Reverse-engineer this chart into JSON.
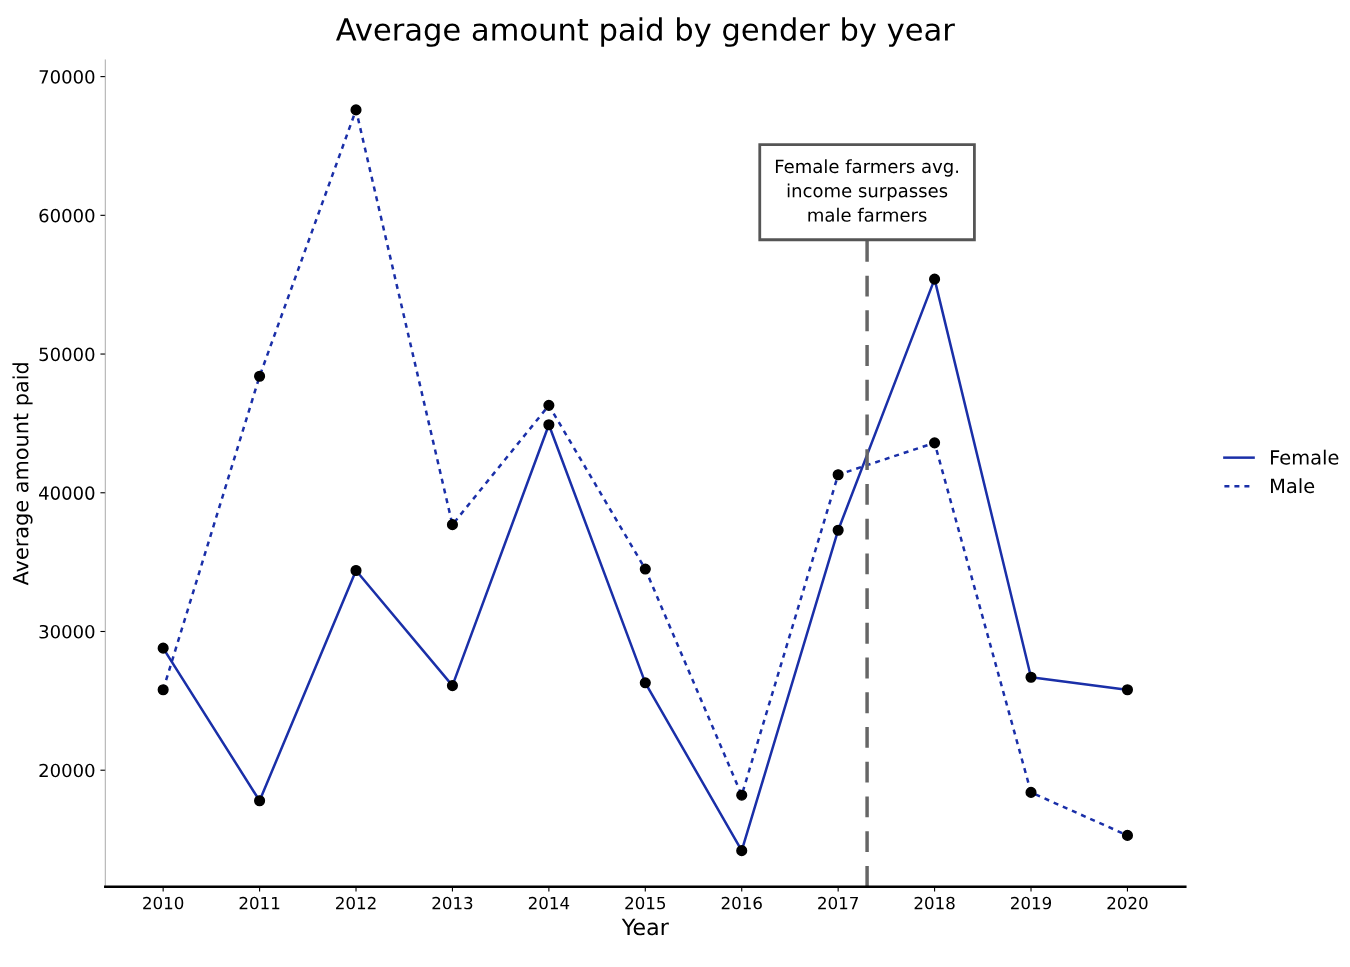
{
  "chart_data": {
    "type": "line",
    "title": "Average amount paid by gender by year",
    "xlabel": "Year",
    "ylabel": "Average amount paid",
    "x": [
      2010,
      2011,
      2012,
      2013,
      2014,
      2015,
      2016,
      2017,
      2018,
      2019,
      2020
    ],
    "series": [
      {
        "name": "Female",
        "color": "#1a2fa8",
        "line_style": "solid",
        "values": [
          28800,
          17800,
          34400,
          26100,
          44900,
          26300,
          14200,
          37300,
          55400,
          26700,
          25800
        ]
      },
      {
        "name": "Male",
        "color": "#1a2fa8",
        "line_style": "dotted",
        "values": [
          25800,
          48400,
          67600,
          37700,
          46300,
          34500,
          18200,
          41300,
          43600,
          18400,
          15300
        ]
      }
    ],
    "xlim": [
      2009.4,
      2020.6
    ],
    "xticks": [
      2010,
      2011,
      2012,
      2013,
      2014,
      2015,
      2016,
      2017,
      2018,
      2019,
      2020
    ],
    "ylim": [
      11600,
      71200
    ],
    "yticks": [
      20000,
      30000,
      40000,
      50000,
      60000,
      70000
    ],
    "ref_lines": [
      {
        "axis": "x",
        "value": 2017.3,
        "label": "Female farmers avg.\nincome surpasses\nmale farmers",
        "color": "#666666",
        "line_style": "dashed"
      }
    ],
    "marker": "circle",
    "grid": false,
    "legend": "right"
  }
}
